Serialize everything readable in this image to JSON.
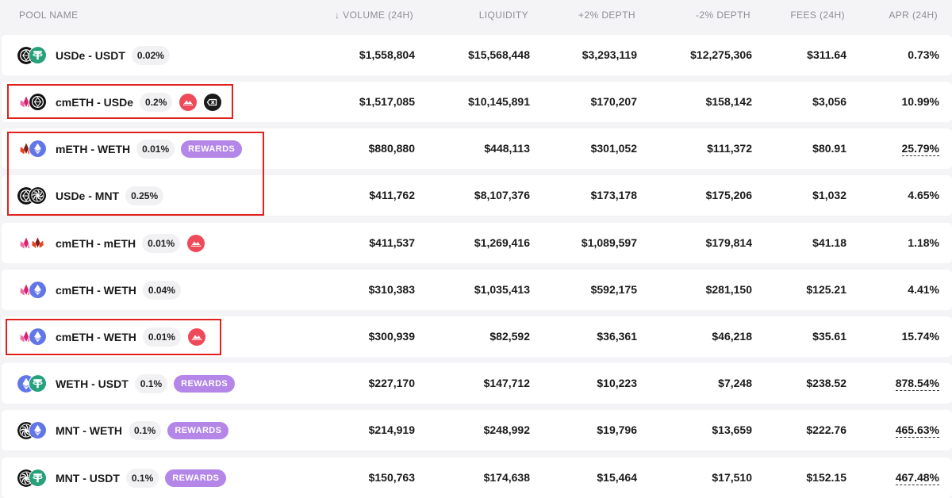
{
  "header": {
    "pool_name": "POOL NAME",
    "volume_arrow": "↓",
    "volume": "VOLUME (24H)",
    "liquidity": "LIQUIDITY",
    "depth_plus": "+2% DEPTH",
    "depth_minus": "-2% DEPTH",
    "fees": "FEES (24H)",
    "apr": "APR (24H)"
  },
  "colors": {
    "rewards_badge": "#b386e8",
    "highlight_box": "#e0211d",
    "row_bg": "#ffffff",
    "page_bg": "#f4f4f6"
  },
  "pools": [
    {
      "tokens": [
        "usde-token-icon",
        "usdt-token-icon"
      ],
      "name": "USDe - USDT",
      "fee": "0.02%",
      "badges": [],
      "volume": "$1,558,804",
      "liquidity": "$15,568,448",
      "depth_plus": "$3,293,119",
      "depth_minus": "$12,275,306",
      "fees": "$311.64",
      "apr": "0.73%",
      "apr_dotted": false
    },
    {
      "tokens": [
        "cmeth-token-icon",
        "usde-token-icon"
      ],
      "name": "cmETH - USDe",
      "fee": "0.2%",
      "badges": [
        "red-mountain-icon",
        "ethena-x-icon"
      ],
      "volume": "$1,517,085",
      "liquidity": "$10,145,891",
      "depth_plus": "$170,207",
      "depth_minus": "$158,142",
      "fees": "$3,056",
      "apr": "10.99%",
      "apr_dotted": false
    },
    {
      "tokens": [
        "meth-token-icon",
        "weth-token-icon"
      ],
      "name": "mETH - WETH",
      "fee": "0.01%",
      "badges": [
        "rewards"
      ],
      "rewards_label": "REWARDS",
      "volume": "$880,880",
      "liquidity": "$448,113",
      "depth_plus": "$301,052",
      "depth_minus": "$111,372",
      "fees": "$80.91",
      "apr": "25.79%",
      "apr_dotted": true
    },
    {
      "tokens": [
        "usde-token-icon",
        "mnt-token-icon"
      ],
      "name": "USDe - MNT",
      "fee": "0.25%",
      "badges": [],
      "volume": "$411,762",
      "liquidity": "$8,107,376",
      "depth_plus": "$173,178",
      "depth_minus": "$175,206",
      "fees": "$1,032",
      "apr": "4.65%",
      "apr_dotted": false
    },
    {
      "tokens": [
        "cmeth-token-icon",
        "meth-token-icon"
      ],
      "name": "cmETH - mETH",
      "fee": "0.01%",
      "badges": [
        "red-mountain-icon"
      ],
      "volume": "$411,537",
      "liquidity": "$1,269,416",
      "depth_plus": "$1,089,597",
      "depth_minus": "$179,814",
      "fees": "$41.18",
      "apr": "1.18%",
      "apr_dotted": false
    },
    {
      "tokens": [
        "cmeth-token-icon",
        "weth-token-icon"
      ],
      "name": "cmETH - WETH",
      "fee": "0.04%",
      "badges": [],
      "volume": "$310,383",
      "liquidity": "$1,035,413",
      "depth_plus": "$592,175",
      "depth_minus": "$281,150",
      "fees": "$125.21",
      "apr": "4.41%",
      "apr_dotted": false
    },
    {
      "tokens": [
        "cmeth-token-icon",
        "weth-token-icon"
      ],
      "name": "cmETH - WETH",
      "fee": "0.01%",
      "badges": [
        "red-mountain-icon"
      ],
      "volume": "$300,939",
      "liquidity": "$82,592",
      "depth_plus": "$36,361",
      "depth_minus": "$46,218",
      "fees": "$35.61",
      "apr": "15.74%",
      "apr_dotted": false
    },
    {
      "tokens": [
        "weth-token-icon",
        "usdt-token-icon"
      ],
      "name": "WETH - USDT",
      "fee": "0.1%",
      "badges": [
        "rewards"
      ],
      "rewards_label": "REWARDS",
      "volume": "$227,170",
      "liquidity": "$147,712",
      "depth_plus": "$10,223",
      "depth_minus": "$7,248",
      "fees": "$238.52",
      "apr": "878.54%",
      "apr_dotted": true
    },
    {
      "tokens": [
        "mnt-token-icon",
        "weth-token-icon"
      ],
      "name": "MNT - WETH",
      "fee": "0.1%",
      "badges": [
        "rewards"
      ],
      "rewards_label": "REWARDS",
      "volume": "$214,919",
      "liquidity": "$248,992",
      "depth_plus": "$19,796",
      "depth_minus": "$13,659",
      "fees": "$222.76",
      "apr": "465.63%",
      "apr_dotted": true
    },
    {
      "tokens": [
        "mnt-token-icon",
        "usdt-token-icon"
      ],
      "name": "MNT - USDT",
      "fee": "0.1%",
      "badges": [
        "rewards"
      ],
      "rewards_label": "REWARDS",
      "volume": "$150,763",
      "liquidity": "$174,638",
      "depth_plus": "$15,464",
      "depth_minus": "$17,510",
      "fees": "$152.15",
      "apr": "467.48%",
      "apr_dotted": true
    }
  ]
}
